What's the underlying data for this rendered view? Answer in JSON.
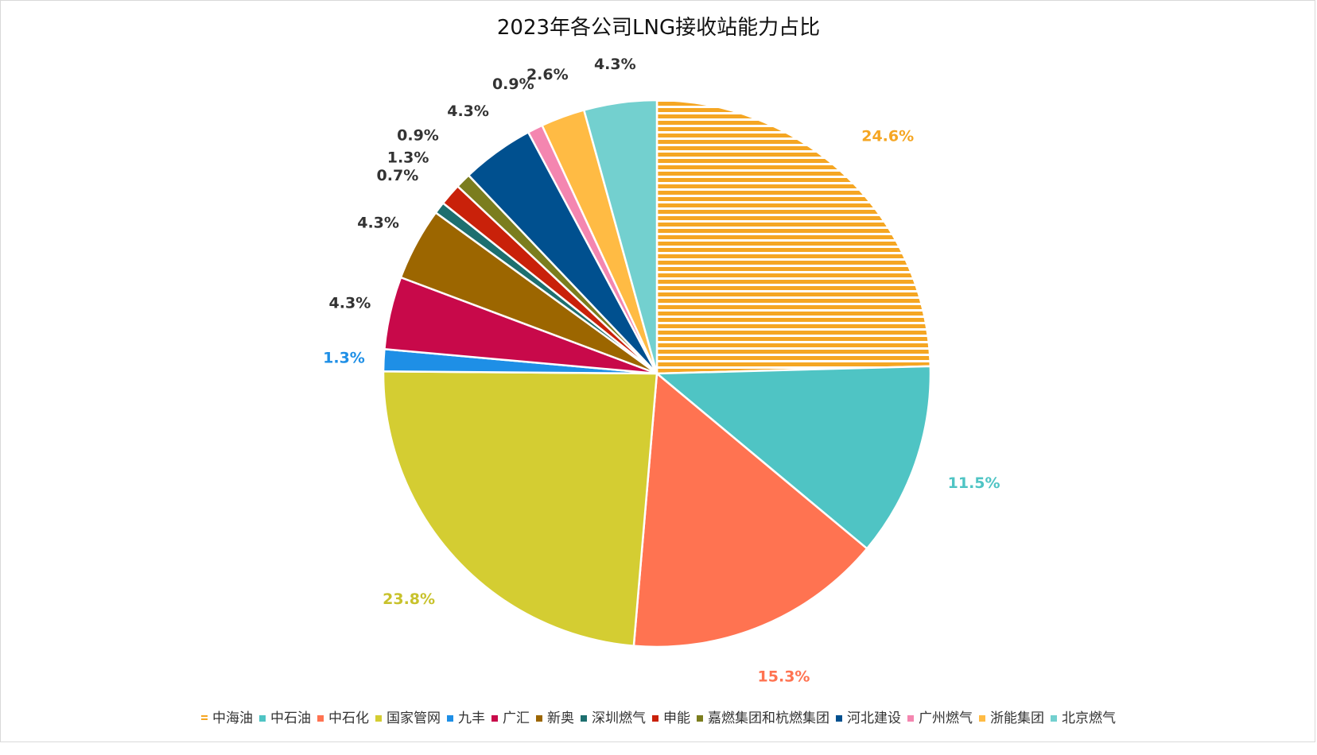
{
  "chart_data": {
    "type": "pie",
    "title": "2023年各公司LNG接收站能力占比",
    "legend_position": "bottom",
    "start_angle_deg": 0,
    "direction": "clockwise",
    "slices": [
      {
        "name": "中海油",
        "value": 24.6,
        "label": "24.6%",
        "color": "#f5a623",
        "pattern": "horizontal-stripes",
        "label_color": "#f5a623"
      },
      {
        "name": "中石油",
        "value": 11.5,
        "label": "11.5%",
        "color": "#4fc4c4",
        "label_color": "#4fc4c4"
      },
      {
        "name": "中石化",
        "value": 15.3,
        "label": "15.3%",
        "color": "#ff7351",
        "label_color": "#ff7351"
      },
      {
        "name": "国家管网",
        "value": 23.8,
        "label": "23.8%",
        "color": "#d4cd32",
        "label_color": "#c8c22c"
      },
      {
        "name": "九丰",
        "value": 1.3,
        "label": "1.3%",
        "color": "#1e8fe6",
        "label_color": "#1e8fe6"
      },
      {
        "name": "广汇",
        "value": 4.3,
        "label": "4.3%",
        "color": "#c8094a",
        "label_color": "#333333"
      },
      {
        "name": "新奥",
        "value": 4.3,
        "label": "4.3%",
        "color": "#9c6600",
        "label_color": "#333333"
      },
      {
        "name": "深圳燃气",
        "value": 0.7,
        "label": "0.7%",
        "color": "#1d6f6f",
        "label_color": "#333333"
      },
      {
        "name": "申能",
        "value": 1.3,
        "label": "1.3%",
        "color": "#c9210a",
        "label_color": "#333333"
      },
      {
        "name": "嘉燃集团和杭燃集团",
        "value": 0.9,
        "label": "0.9%",
        "color": "#7b7d1e",
        "label_color": "#333333"
      },
      {
        "name": "河北建设",
        "value": 4.3,
        "label": "4.3%",
        "color": "#00508f",
        "label_color": "#333333"
      },
      {
        "name": "广州燃气",
        "value": 0.9,
        "label": "0.9%",
        "color": "#f486b0",
        "label_color": "#333333"
      },
      {
        "name": "浙能集团",
        "value": 2.6,
        "label": "2.6%",
        "color": "#ffbb44",
        "label_color": "#333333"
      },
      {
        "name": "北京燃气",
        "value": 4.3,
        "label": "4.3%",
        "color": "#73d0cf",
        "label_color": "#333333"
      }
    ]
  }
}
